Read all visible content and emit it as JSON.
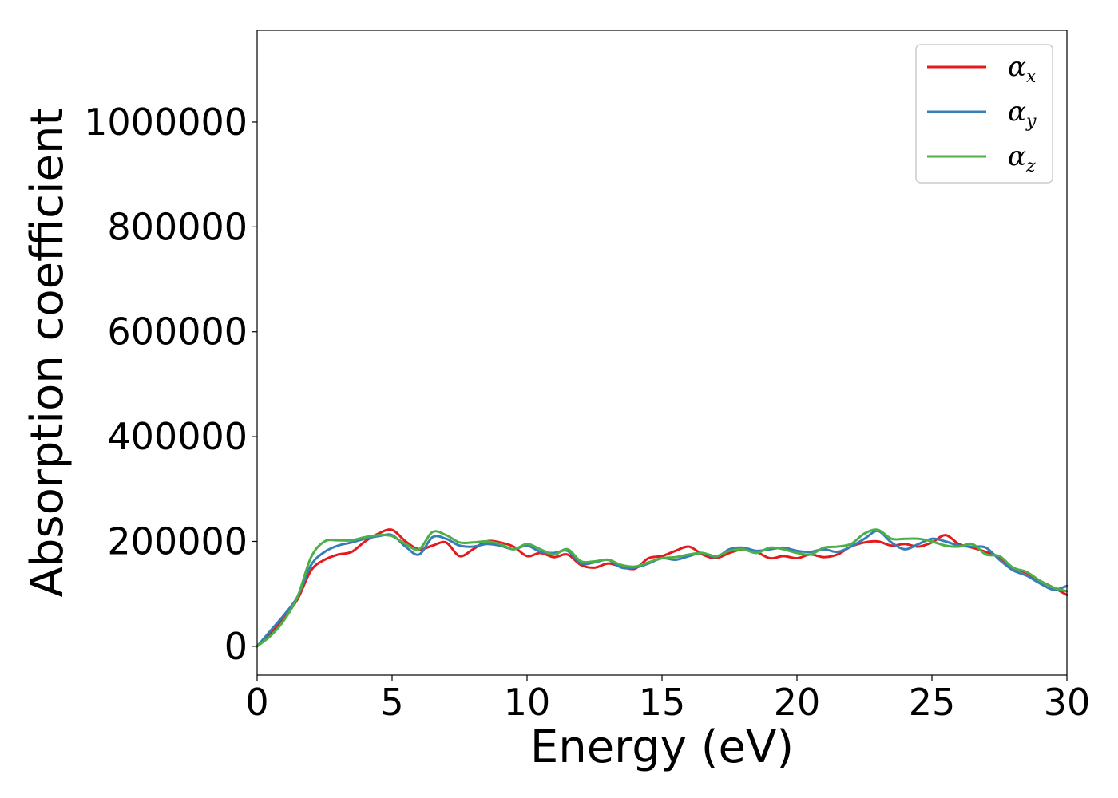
{
  "chart_data": {
    "type": "line",
    "xlabel": "Energy (eV)",
    "ylabel": "Absorption coefficient",
    "xlim": [
      0,
      30
    ],
    "ylim": [
      -55000,
      1175000
    ],
    "xticks": [
      0,
      5,
      10,
      15,
      20,
      25,
      30
    ],
    "yticks": [
      0,
      200000,
      400000,
      600000,
      800000,
      1000000
    ],
    "grid": false,
    "legend_position": "top-right",
    "series": [
      {
        "name": "α_x",
        "symbol": "α",
        "subscript": "x",
        "color": "#e41a1c",
        "x": [
          0,
          0.5,
          1,
          1.5,
          2,
          2.5,
          3,
          3.5,
          4,
          4.5,
          5,
          5.5,
          6,
          6.5,
          7,
          7.5,
          8,
          8.5,
          9,
          9.5,
          10,
          10.5,
          11,
          11.5,
          12,
          12.5,
          13,
          13.5,
          14,
          14.5,
          15,
          15.5,
          16,
          16.5,
          17,
          17.5,
          18,
          18.5,
          19,
          19.5,
          20,
          20.5,
          21,
          21.5,
          22,
          22.5,
          23,
          23.5,
          24,
          24.5,
          25,
          25.5,
          26,
          26.5,
          27,
          27.5,
          28,
          28.5,
          29,
          29.5,
          30
        ],
        "y": [
          0,
          25000,
          55000,
          90000,
          145000,
          165000,
          175000,
          180000,
          200000,
          215000,
          222000,
          200000,
          185000,
          192000,
          198000,
          172000,
          185000,
          200000,
          198000,
          190000,
          172000,
          178000,
          170000,
          175000,
          155000,
          150000,
          158000,
          152000,
          148000,
          168000,
          172000,
          182000,
          190000,
          175000,
          168000,
          178000,
          185000,
          180000,
          168000,
          172000,
          168000,
          175000,
          170000,
          175000,
          190000,
          198000,
          200000,
          192000,
          195000,
          190000,
          198000,
          212000,
          195000,
          188000,
          180000,
          170000,
          150000,
          140000,
          125000,
          112000,
          98000
        ]
      },
      {
        "name": "α_y",
        "symbol": "α",
        "subscript": "y",
        "color": "#377eb8",
        "x": [
          0,
          0.5,
          1,
          1.5,
          2,
          2.5,
          3,
          3.5,
          4,
          4.5,
          5,
          5.5,
          6,
          6.5,
          7,
          7.5,
          8,
          8.5,
          9,
          9.5,
          10,
          10.5,
          11,
          11.5,
          12,
          12.5,
          13,
          13.5,
          14,
          14.5,
          15,
          15.5,
          16,
          16.5,
          17,
          17.5,
          18,
          18.5,
          19,
          19.5,
          20,
          20.5,
          21,
          21.5,
          22,
          22.5,
          23,
          23.5,
          24,
          24.5,
          25,
          25.5,
          26,
          26.5,
          27,
          27.5,
          28,
          28.5,
          29,
          29.5,
          30
        ],
        "y": [
          0,
          30000,
          60000,
          95000,
          155000,
          180000,
          192000,
          198000,
          205000,
          210000,
          212000,
          190000,
          175000,
          208000,
          205000,
          192000,
          190000,
          195000,
          192000,
          185000,
          192000,
          180000,
          178000,
          182000,
          158000,
          160000,
          165000,
          150000,
          150000,
          158000,
          168000,
          165000,
          172000,
          178000,
          170000,
          185000,
          188000,
          182000,
          185000,
          188000,
          182000,
          180000,
          185000,
          180000,
          190000,
          205000,
          220000,
          198000,
          185000,
          195000,
          205000,
          200000,
          192000,
          190000,
          188000,
          165000,
          145000,
          135000,
          120000,
          108000,
          115000
        ]
      },
      {
        "name": "α_z",
        "symbol": "α",
        "subscript": "z",
        "color": "#4daf4a",
        "x": [
          0,
          0.5,
          1,
          1.5,
          2,
          2.5,
          3,
          3.5,
          4,
          4.5,
          5,
          5.5,
          6,
          6.5,
          7,
          7.5,
          8,
          8.5,
          9,
          9.5,
          10,
          10.5,
          11,
          11.5,
          12,
          12.5,
          13,
          13.5,
          14,
          14.5,
          15,
          15.5,
          16,
          16.5,
          17,
          17.5,
          18,
          18.5,
          19,
          19.5,
          20,
          20.5,
          21,
          21.5,
          22,
          22.5,
          23,
          23.5,
          24,
          24.5,
          25,
          25.5,
          26,
          26.5,
          27,
          27.5,
          28,
          28.5,
          29,
          29.5,
          30
        ],
        "y": [
          0,
          20000,
          50000,
          95000,
          170000,
          200000,
          202000,
          202000,
          208000,
          212000,
          210000,
          195000,
          185000,
          218000,
          212000,
          198000,
          198000,
          200000,
          195000,
          185000,
          195000,
          185000,
          175000,
          185000,
          162000,
          162000,
          165000,
          155000,
          152000,
          160000,
          168000,
          170000,
          175000,
          178000,
          172000,
          182000,
          185000,
          178000,
          188000,
          185000,
          178000,
          175000,
          188000,
          190000,
          195000,
          215000,
          222000,
          205000,
          205000,
          205000,
          200000,
          192000,
          190000,
          195000,
          175000,
          172000,
          150000,
          142000,
          125000,
          112000,
          105000
        ]
      }
    ]
  }
}
